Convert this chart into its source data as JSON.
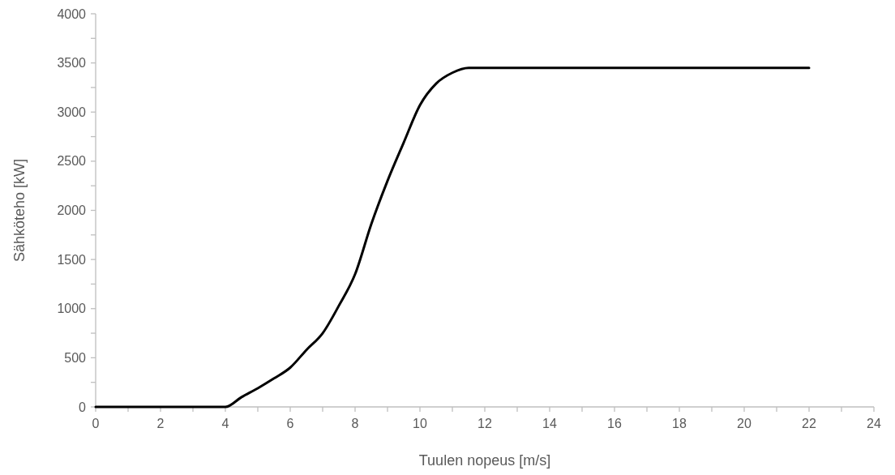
{
  "chart_data": {
    "type": "line",
    "xlabel": "Tuulen nopeus [m/s]",
    "ylabel": "Sähköteho [kW]",
    "xlim": [
      0,
      24
    ],
    "ylim": [
      0,
      4000
    ],
    "xticks": [
      0,
      {
        "value": 1,
        "label": null
      },
      2,
      {
        "value": 3,
        "label": null
      },
      4,
      {
        "value": 5,
        "label": null
      },
      6,
      {
        "value": 7,
        "label": null
      },
      8,
      {
        "value": 9,
        "label": null
      },
      10,
      {
        "value": 11,
        "label": null
      },
      12,
      {
        "value": 13,
        "label": null
      },
      14,
      {
        "value": 15,
        "label": null
      },
      16,
      {
        "value": 17,
        "label": null
      },
      18,
      {
        "value": 19,
        "label": null
      },
      20,
      {
        "value": 21,
        "label": null
      },
      22,
      {
        "value": 23,
        "label": null
      },
      24
    ],
    "yticks": [
      0,
      {
        "value": 250,
        "label": null
      },
      500,
      {
        "value": 750,
        "label": null
      },
      1000,
      {
        "value": 1250,
        "label": null
      },
      1500,
      {
        "value": 1750,
        "label": null
      },
      2000,
      {
        "value": 2250,
        "label": null
      },
      2500,
      {
        "value": 2750,
        "label": null
      },
      3000,
      {
        "value": 3250,
        "label": null
      },
      3500,
      {
        "value": 3750,
        "label": null
      },
      4000
    ],
    "grid": false,
    "marker": "none",
    "line_style": "solid",
    "series": [
      {
        "color": "#000000",
        "x": [
          0,
          1,
          2,
          3,
          3.5,
          4,
          4.5,
          5,
          5.5,
          6,
          6.5,
          7,
          7.5,
          8,
          8.5,
          9,
          9.5,
          10,
          10.5,
          11,
          11.5,
          12,
          13,
          14,
          15,
          16,
          17,
          18,
          19,
          20,
          21,
          22
        ],
        "values": [
          0,
          0,
          0,
          0,
          0,
          0,
          100,
          190,
          290,
          400,
          580,
          750,
          1030,
          1350,
          1860,
          2300,
          2690,
          3070,
          3290,
          3400,
          3450,
          3450,
          3450,
          3450,
          3450,
          3450,
          3450,
          3450,
          3450,
          3450,
          3450,
          3450
        ]
      }
    ]
  }
}
